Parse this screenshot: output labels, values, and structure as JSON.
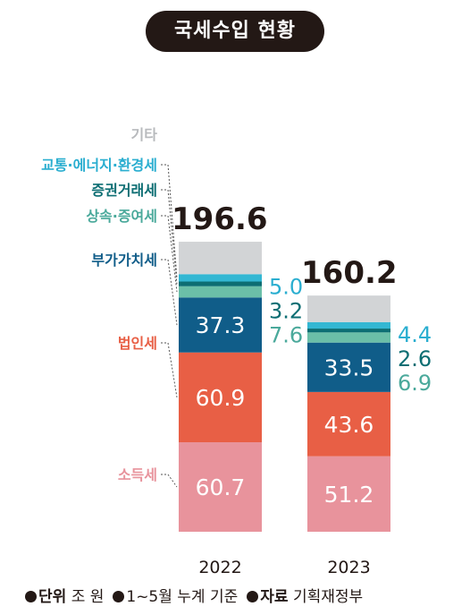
{
  "title": "국세수입 현황",
  "chart_data": {
    "type": "bar",
    "stacked": true,
    "title": "국세수입 현황",
    "categories": [
      "2022",
      "2023"
    ],
    "totals": [
      "196.6",
      "160.2"
    ],
    "series": [
      {
        "name": "소득세",
        "values": [
          60.7,
          51.2
        ],
        "labels": [
          "60.7",
          "51.2"
        ],
        "color": "#e8939c",
        "label_color": "#e8939c",
        "value_color": "#ffffff"
      },
      {
        "name": "법인세",
        "values": [
          60.9,
          43.6
        ],
        "labels": [
          "60.9",
          "43.6"
        ],
        "color": "#e85f45",
        "label_color": "#e85f45",
        "value_color": "#ffffff"
      },
      {
        "name": "부가가치세",
        "values": [
          37.3,
          33.5
        ],
        "labels": [
          "37.3",
          "33.5"
        ],
        "color": "#105d89",
        "label_color": "#105d89",
        "value_color": "#ffffff"
      },
      {
        "name": "상속·증여세",
        "values": [
          7.6,
          6.9
        ],
        "labels": [
          "7.6",
          "6.9"
        ],
        "color": "#6bbfa8",
        "label_color": "#4aa99b",
        "value_color": "#4aa99b"
      },
      {
        "name": "증권거래세",
        "values": [
          3.2,
          2.6
        ],
        "labels": [
          "3.2",
          "2.6"
        ],
        "color": "#0d6e73",
        "label_color": "#0d6e73",
        "value_color": "#0d6e73"
      },
      {
        "name": "교통·에너지·환경세",
        "values": [
          5.0,
          4.4
        ],
        "labels": [
          "5.0",
          "4.4"
        ],
        "color": "#33b7d3",
        "label_color": "#2aaed0",
        "value_color": "#2aaed0"
      },
      {
        "name": "기타",
        "values": [
          22.0,
          18.0
        ],
        "labels": [
          "",
          ""
        ],
        "color": "#d2d4d6",
        "label_color": "#b8babd",
        "value_color": "#b8babd"
      }
    ]
  },
  "footer": {
    "unit_label": "단위",
    "unit_value": "조 원",
    "basis": "1~5월 누계 기준",
    "source_label": "자료",
    "source_value": "기획재정부"
  }
}
